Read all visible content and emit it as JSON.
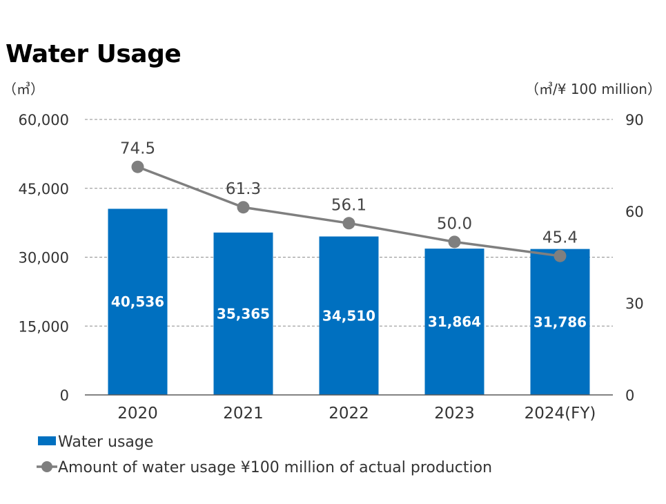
{
  "title": "Water Usage",
  "chart_data": {
    "type": "bar",
    "categories": [
      "2020",
      "2021",
      "2022",
      "2023",
      "2024(FY)"
    ],
    "series": [
      {
        "name": "Water usage",
        "type": "bar",
        "axis": "left",
        "values": [
          40536,
          35365,
          34510,
          31864,
          31786
        ],
        "labels": [
          "40,536",
          "35,365",
          "34,510",
          "31,864",
          "31,786"
        ],
        "color": "#0070c0"
      },
      {
        "name": "Amount of water usage ¥100 million of actual production",
        "type": "line",
        "axis": "right",
        "values": [
          74.5,
          61.3,
          56.1,
          50.0,
          45.4
        ],
        "labels": [
          "74.5",
          "61.3",
          "56.1",
          "50.0",
          "45.4"
        ],
        "color": "#7f7f7f"
      }
    ],
    "y_left": {
      "unit": "（㎥）",
      "ticks": [
        "0",
        "15,000",
        "30,000",
        "45,000",
        "60,000"
      ],
      "ylim": [
        0,
        60000
      ]
    },
    "y_right": {
      "unit": "（㎥/¥ 100 million）",
      "ticks": [
        "0",
        "30",
        "60",
        "90"
      ],
      "ylim": [
        0,
        90
      ]
    },
    "grid": "dashed horizontal",
    "legend": "bottom-left"
  }
}
